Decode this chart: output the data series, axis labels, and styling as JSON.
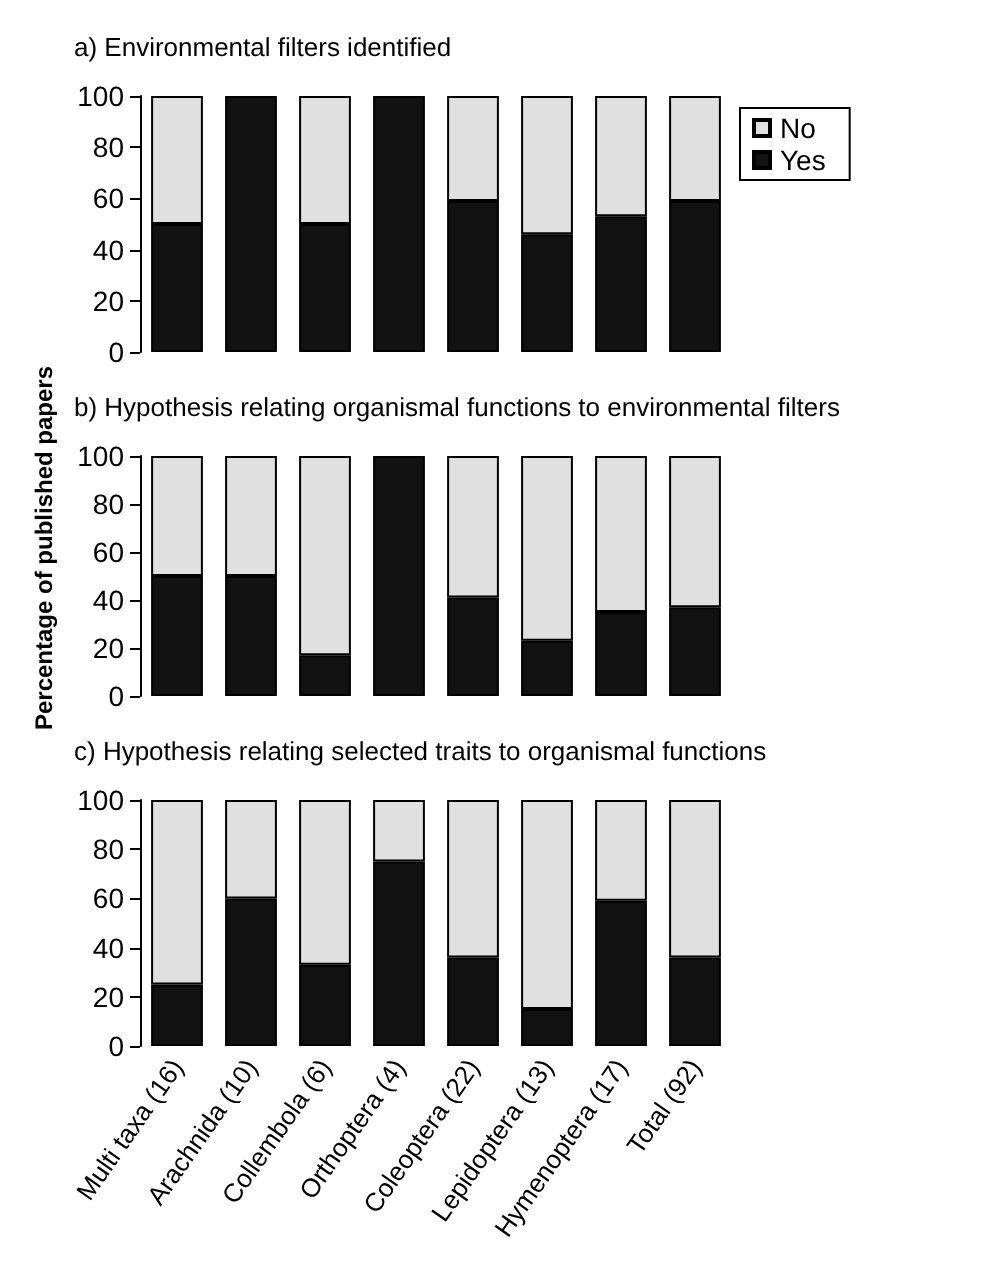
{
  "chart_data": [
    {
      "type": "bar",
      "title": "a) Environmental filters identified",
      "stacked": true,
      "series": [
        {
          "name": "Yes",
          "color": "#111111",
          "values": [
            50,
            100,
            50,
            100,
            59,
            46,
            53,
            59
          ]
        },
        {
          "name": "No",
          "color": "#e0e0e0",
          "values": [
            50,
            0,
            50,
            0,
            41,
            54,
            47,
            41
          ]
        }
      ],
      "ylim": [
        0,
        100
      ],
      "yticks": [
        0,
        20,
        40,
        60,
        80,
        100
      ],
      "grid": false,
      "legend": "top right",
      "tick_labels": "y"
    },
    {
      "type": "bar",
      "title": "b) Hypothesis relating organismal functions to environmental filters",
      "ylabel": "Percentage of published papers",
      "stacked": true,
      "series": [
        {
          "color": "#111111",
          "values": [
            50,
            50,
            17,
            100,
            41,
            23,
            35,
            37
          ]
        },
        {
          "color": "#e0e0e0",
          "values": [
            50,
            50,
            83,
            0,
            59,
            77,
            65,
            63
          ]
        }
      ],
      "ylim": [
        0,
        100
      ],
      "yticks": [
        0,
        20,
        40,
        60,
        80,
        100
      ],
      "grid": false,
      "tick_labels": "y"
    },
    {
      "type": "bar",
      "title": "c) Hypothesis relating selected traits to organismal functions",
      "categories": [
        "Multi taxa (16)",
        "Arachnida (10)",
        "Collembola (6)",
        "Orthoptera (4)",
        "Coleoptera (22)",
        "Lepidoptera (13)",
        "Hymenoptera (17)",
        "Total (92)"
      ],
      "stacked": true,
      "series": [
        {
          "color": "#111111",
          "values": [
            25,
            60,
            33,
            75,
            36,
            15,
            59,
            36
          ]
        },
        {
          "color": "#e0e0e0",
          "values": [
            75,
            40,
            67,
            25,
            64,
            85,
            41,
            64
          ]
        }
      ],
      "ylim": [
        0,
        100
      ],
      "yticks": [
        0,
        20,
        40,
        60,
        80,
        100
      ],
      "grid": false
    }
  ]
}
